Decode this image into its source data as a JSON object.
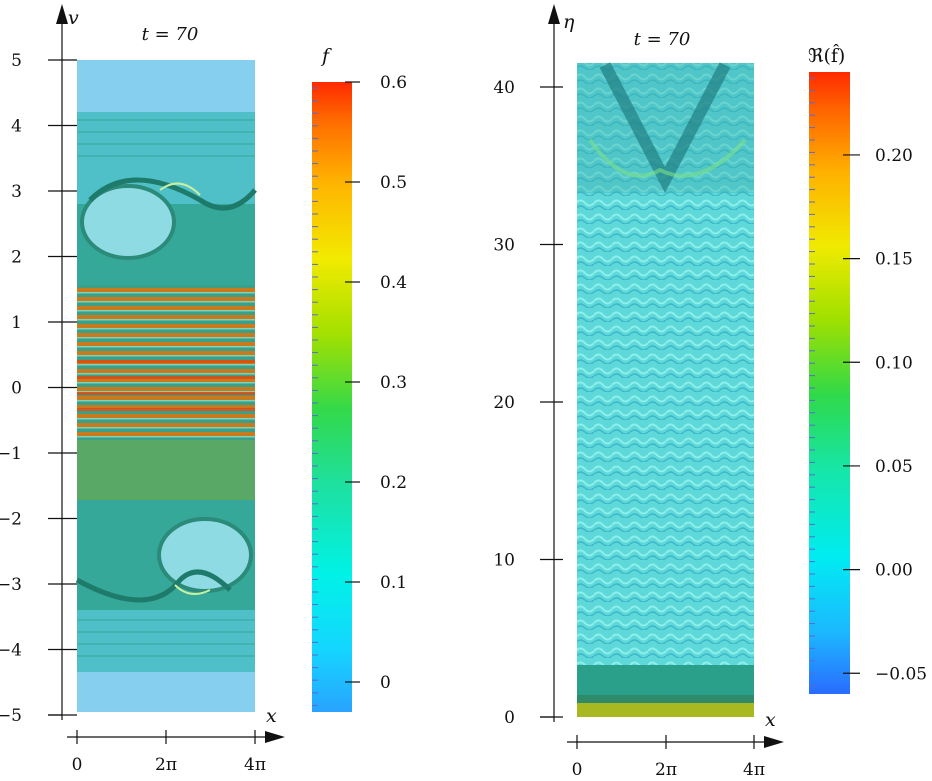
{
  "chart_data": [
    {
      "type": "heatmap",
      "title": "t = 70",
      "xlabel": "x",
      "ylabel": "v",
      "xlim": [
        0,
        12.566
      ],
      "ylim": [
        -5,
        5
      ],
      "xticks": [
        "0",
        "2π",
        "4π"
      ],
      "yticks": [
        "5",
        "4",
        "3",
        "2",
        "1",
        "0",
        "−1",
        "−2",
        "−3",
        "−4",
        "−5"
      ],
      "colorbar": {
        "label": "f",
        "range": [
          -0.03,
          0.6
        ],
        "ticks": [
          "0.6",
          "0.5",
          "0.4",
          "0.3",
          "0.2",
          "0.1",
          "0"
        ]
      }
    },
    {
      "type": "heatmap",
      "title": "t = 70",
      "xlabel": "x",
      "ylabel": "η",
      "xlim": [
        0,
        12.566
      ],
      "ylim": [
        0,
        41
      ],
      "xticks": [
        "0",
        "2π",
        "4π"
      ],
      "yticks": [
        "40",
        "30",
        "20",
        "10",
        "0"
      ],
      "colorbar": {
        "label": "ℜ(f̂)",
        "range": [
          -0.06,
          0.24
        ],
        "ticks": [
          "0.20",
          "0.15",
          "0.10",
          "0.05",
          "0.00",
          "−0.05"
        ]
      }
    }
  ]
}
